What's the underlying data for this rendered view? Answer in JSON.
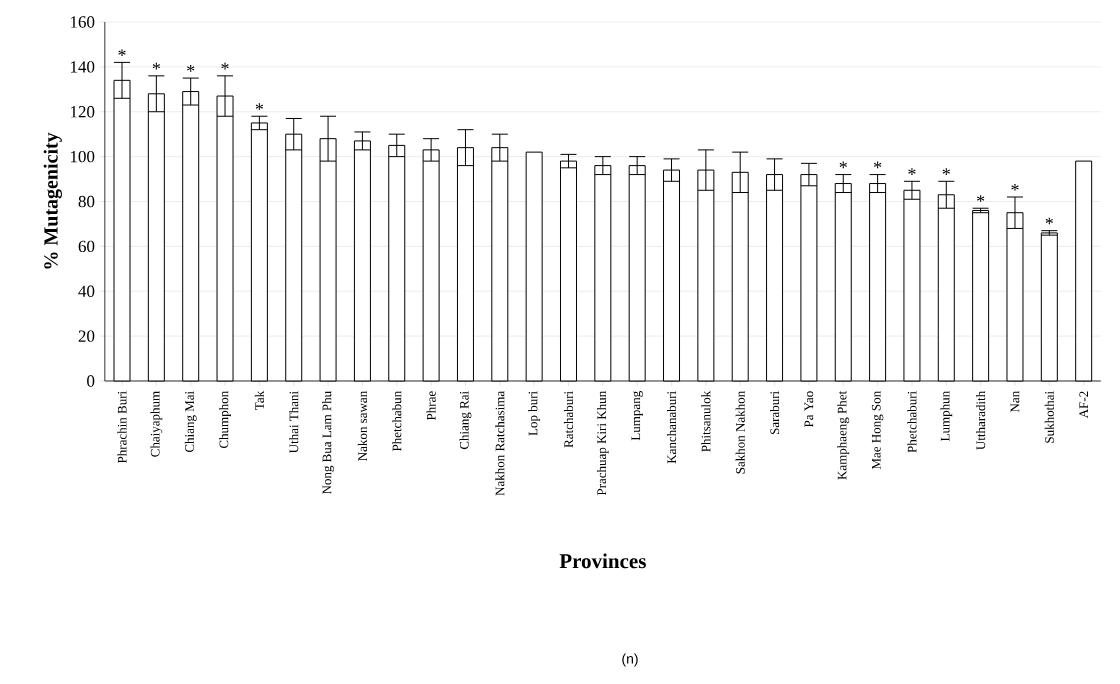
{
  "chart_data": {
    "type": "bar",
    "ylabel": "% Mutagenicity",
    "xlabel": "Provinces",
    "categories": [
      "Phrachin Buri",
      "Chaiyaphum",
      "Chiang Mai",
      "Chumphon",
      "Tak",
      "Uthai Thani",
      "Nong Bua Lam Phu",
      "Nakon sawan",
      "Phetchabun",
      "Phrae",
      "Chiang Rai",
      "Nakhon Ratchasima",
      "Lop buri",
      "Ratchaburi",
      "Prachuap  Kiri Khun",
      "Lumpang",
      "Kanchanaburi",
      "Phitsanulok",
      "Sakhon Nakhon",
      "Saraburi",
      "Pa Yao",
      "Kamphaeng Phet",
      "Mae Hong Son",
      "Phetchaburi",
      "Lumphun",
      "Uttharadith",
      "Nan",
      "Sukhothai",
      "AF-2"
    ],
    "values": [
      134,
      128,
      129,
      127,
      115,
      110,
      108,
      107,
      105,
      103,
      104,
      104,
      102,
      98,
      96,
      96,
      94,
      94,
      93,
      92,
      92,
      88,
      88,
      85,
      83,
      76,
      75,
      66,
      98
    ],
    "errors": [
      8,
      8,
      6,
      9,
      3,
      7,
      10,
      4,
      5,
      5,
      8,
      6,
      null,
      3,
      4,
      4,
      5,
      9,
      9,
      7,
      5,
      4,
      4,
      4,
      6,
      1,
      7,
      1,
      null
    ],
    "color": "#ffffff",
    "ylim": [
      0,
      160
    ],
    "yticks": [
      0,
      20,
      40,
      60,
      80,
      100,
      120,
      140,
      160
    ],
    "grid": "y",
    "annotations": [
      {
        "text": "*",
        "x": "Phrachin Buri",
        "y": 142
      },
      {
        "text": "*",
        "x": "Chaiyaphum",
        "y": 136
      },
      {
        "text": "*",
        "x": "Chiang Mai",
        "y": 135
      },
      {
        "text": "*",
        "x": "Chumphon",
        "y": 136
      },
      {
        "text": "*",
        "x": "Tak",
        "y": 118
      },
      {
        "text": "*",
        "x": "Kamphaeng Phet",
        "y": 92
      },
      {
        "text": "*",
        "x": "Mae Hong Son",
        "y": 92
      },
      {
        "text": "*",
        "x": "Phetchaburi",
        "y": 89
      },
      {
        "text": "*",
        "x": "Lumphun",
        "y": 89
      },
      {
        "text": "*",
        "x": "Uttharadith",
        "y": 77
      },
      {
        "text": "*",
        "x": "Nan",
        "y": 82
      },
      {
        "text": "*",
        "x": "Sukhothai",
        "y": 67
      },
      "(n)"
    ]
  }
}
